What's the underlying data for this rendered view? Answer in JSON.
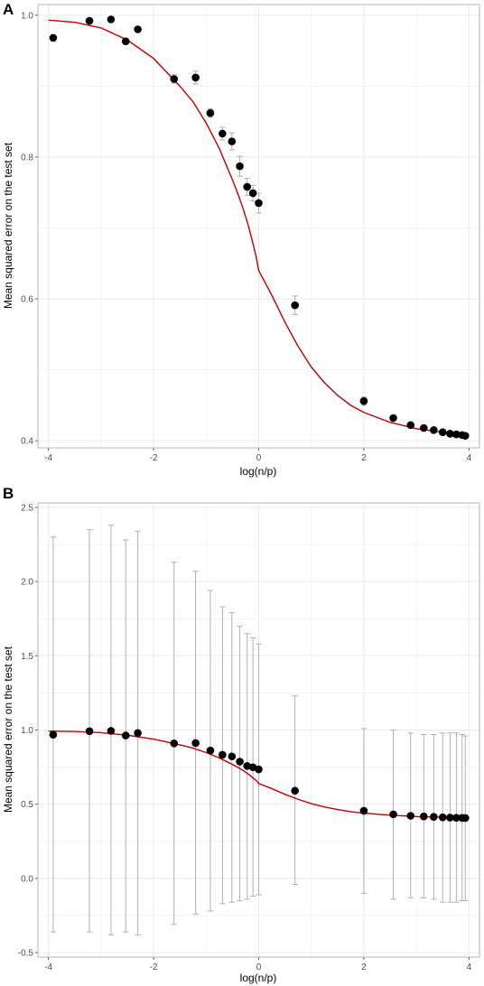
{
  "panels": [
    {
      "letter": "A"
    },
    {
      "letter": "B"
    }
  ],
  "colors": {
    "points": "#000000",
    "fit_line": "#c00000",
    "error_bars": "#a8a8a8",
    "grid": "#ebebeb",
    "panel_border": "#b3b3b3"
  },
  "chart_data": [
    {
      "type": "scatter",
      "title": "",
      "xlabel": "log(n/p)",
      "ylabel": "Mean squared error on the test set",
      "xlim": [
        -4.2,
        4.2
      ],
      "ylim": [
        0.39,
        1.015
      ],
      "x_ticks": [
        -4,
        -2,
        0,
        2,
        4
      ],
      "x_tick_labels": [
        "-4",
        "-2",
        "0",
        "2",
        "4"
      ],
      "y_ticks": [
        0.4,
        0.6,
        0.8,
        1.0
      ],
      "y_tick_labels": [
        "0.4",
        "0.6",
        "0.8",
        "1.0"
      ],
      "grid": true,
      "series": [
        {
          "kind": "points_with_error_bars",
          "x": [
            -3.91,
            -3.22,
            -2.81,
            -2.53,
            -2.3,
            -1.61,
            -1.2,
            -0.92,
            -0.69,
            -0.51,
            -0.36,
            -0.22,
            -0.11,
            0.0,
            0.69,
            2.0,
            2.56,
            2.89,
            3.14,
            3.33,
            3.5,
            3.64,
            3.76,
            3.87,
            3.93
          ],
          "y": [
            0.968,
            0.992,
            0.994,
            0.963,
            0.98,
            0.91,
            0.912,
            0.862,
            0.833,
            0.822,
            0.787,
            0.758,
            0.749,
            0.735,
            0.591,
            0.456,
            0.432,
            0.422,
            0.418,
            0.415,
            0.412,
            0.41,
            0.409,
            0.408,
            0.407
          ],
          "err": [
            0.0,
            0.0,
            0.0,
            0.0,
            0.0,
            0.006,
            0.009,
            0.006,
            0.009,
            0.012,
            0.014,
            0.012,
            0.011,
            0.014,
            0.013,
            0.006,
            0.003,
            0.003,
            0.003,
            0.003,
            0.002,
            0.002,
            0.002,
            0.002,
            0.002
          ]
        },
        {
          "kind": "fit_line",
          "x": [
            -4.0,
            -3.5,
            -3.0,
            -2.5,
            -2.0,
            -1.5,
            -1.25,
            -1.0,
            -0.75,
            -0.5,
            -0.4,
            -0.3,
            -0.2,
            -0.15,
            -0.1,
            -0.05,
            0.0,
            0.25,
            0.5,
            0.75,
            1.0,
            1.25,
            1.5,
            1.75,
            2.0,
            2.5,
            3.0,
            3.5,
            4.0
          ],
          "y": [
            0.993,
            0.99,
            0.982,
            0.965,
            0.939,
            0.9,
            0.878,
            0.848,
            0.812,
            0.768,
            0.749,
            0.728,
            0.704,
            0.69,
            0.675,
            0.66,
            0.64,
            0.605,
            0.567,
            0.533,
            0.504,
            0.482,
            0.464,
            0.45,
            0.44,
            0.426,
            0.417,
            0.412,
            0.408
          ]
        }
      ]
    },
    {
      "type": "scatter",
      "title": "",
      "xlabel": "log(n/p)",
      "ylabel": "Mean squared error on the test set",
      "xlim": [
        -4.2,
        4.2
      ],
      "ylim": [
        -0.53,
        2.53
      ],
      "x_ticks": [
        -4,
        -2,
        0,
        2,
        4
      ],
      "x_tick_labels": [
        "-4",
        "-2",
        "0",
        "2",
        "4"
      ],
      "y_ticks": [
        -0.5,
        0.0,
        0.5,
        1.0,
        1.5,
        2.0,
        2.5
      ],
      "y_tick_labels": [
        "-0.5",
        "0.0",
        "0.5",
        "1.0",
        "1.5",
        "2.0",
        "2.5"
      ],
      "grid": true,
      "series": [
        {
          "kind": "points_with_error_bars",
          "x": [
            -3.91,
            -3.22,
            -2.81,
            -2.53,
            -2.3,
            -1.61,
            -1.2,
            -0.92,
            -0.69,
            -0.51,
            -0.36,
            -0.22,
            -0.11,
            0.0,
            0.69,
            2.0,
            2.56,
            2.89,
            3.14,
            3.33,
            3.5,
            3.64,
            3.76,
            3.87,
            3.93
          ],
          "y": [
            0.968,
            0.992,
            0.994,
            0.963,
            0.98,
            0.91,
            0.912,
            0.862,
            0.833,
            0.822,
            0.787,
            0.758,
            0.749,
            0.735,
            0.591,
            0.456,
            0.432,
            0.422,
            0.418,
            0.415,
            0.412,
            0.41,
            0.409,
            0.408,
            0.407
          ],
          "lo": [
            -0.36,
            -0.36,
            -0.38,
            -0.36,
            -0.38,
            -0.31,
            -0.24,
            -0.22,
            -0.17,
            -0.16,
            -0.15,
            -0.14,
            -0.12,
            -0.11,
            -0.04,
            -0.1,
            -0.14,
            -0.13,
            -0.13,
            -0.14,
            -0.16,
            -0.16,
            -0.16,
            -0.15,
            -0.15
          ],
          "hi": [
            2.3,
            2.35,
            2.38,
            2.28,
            2.34,
            2.13,
            2.07,
            1.94,
            1.83,
            1.79,
            1.7,
            1.65,
            1.62,
            1.58,
            1.23,
            1.01,
            1.0,
            0.98,
            0.97,
            0.97,
            0.98,
            0.98,
            0.98,
            0.97,
            0.96
          ]
        },
        {
          "kind": "fit_line",
          "x": [
            -4.0,
            -3.5,
            -3.0,
            -2.5,
            -2.0,
            -1.5,
            -1.25,
            -1.0,
            -0.75,
            -0.5,
            -0.4,
            -0.3,
            -0.2,
            -0.15,
            -0.1,
            -0.05,
            0.0,
            0.25,
            0.5,
            0.75,
            1.0,
            1.25,
            1.5,
            1.75,
            2.0,
            2.5,
            3.0,
            3.5,
            4.0
          ],
          "y": [
            0.993,
            0.99,
            0.982,
            0.965,
            0.939,
            0.9,
            0.878,
            0.848,
            0.812,
            0.768,
            0.749,
            0.728,
            0.704,
            0.69,
            0.675,
            0.66,
            0.64,
            0.605,
            0.567,
            0.533,
            0.504,
            0.482,
            0.464,
            0.45,
            0.44,
            0.426,
            0.417,
            0.412,
            0.408
          ]
        }
      ]
    }
  ]
}
